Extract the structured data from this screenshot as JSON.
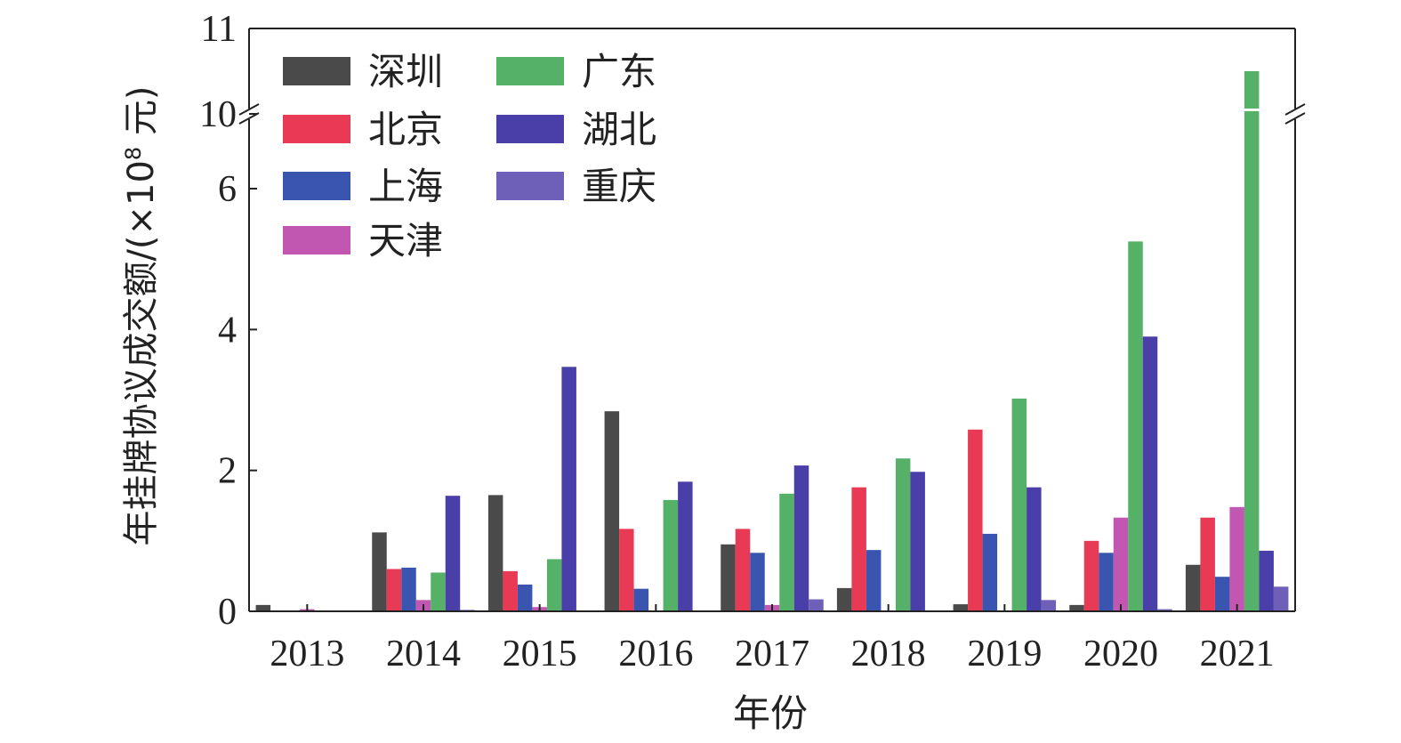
{
  "chart_data": {
    "type": "bar",
    "xlabel": "年份",
    "ylabel": "年挂牌协议成交额/(×10⁸ 元)",
    "ylabel_main": "年挂牌协议成交额/(×10",
    "ylabel_exp": "8",
    "ylabel_unit": " 元)",
    "categories": [
      "2013",
      "2014",
      "2015",
      "2016",
      "2017",
      "2018",
      "2019",
      "2020",
      "2021"
    ],
    "yticks_lower": [
      "0",
      "2",
      "4",
      "6"
    ],
    "yticks_upper": [
      "10",
      "11"
    ],
    "ylim_lower": [
      0,
      7.1
    ],
    "ylim_upper": [
      10,
      11
    ],
    "axis_break": true,
    "legend_position": "top-left",
    "grid": false,
    "series": [
      {
        "name": "深圳",
        "color": "#4a4a4a",
        "values": [
          0.09,
          1.12,
          1.65,
          2.84,
          0.95,
          0.33,
          0.1,
          0.09,
          0.66
        ]
      },
      {
        "name": "北京",
        "color": "#e83a54",
        "values": [
          0,
          0.6,
          0.57,
          1.17,
          1.17,
          1.76,
          2.58,
          1.0,
          1.33
        ]
      },
      {
        "name": "上海",
        "color": "#3a55b0",
        "values": [
          0,
          0.62,
          0.38,
          0.32,
          0.83,
          0.87,
          1.1,
          0.83,
          0.49
        ]
      },
      {
        "name": "天津",
        "color": "#c157b0",
        "values": [
          0.03,
          0.16,
          0.06,
          0,
          0.09,
          0,
          0,
          1.33,
          1.48
        ]
      },
      {
        "name": "广东",
        "color": "#55b068",
        "values": [
          0,
          0.55,
          0.74,
          1.58,
          1.67,
          2.17,
          3.02,
          5.25,
          10.5
        ]
      },
      {
        "name": "湖北",
        "color": "#4a3fa8",
        "values": [
          0,
          1.64,
          3.47,
          1.84,
          2.07,
          1.98,
          1.76,
          3.9,
          0.86
        ]
      },
      {
        "name": "重庆",
        "color": "#6e60b8",
        "values": [
          0,
          0.02,
          0,
          0,
          0.17,
          0,
          0.16,
          0.03,
          0.35
        ]
      }
    ]
  }
}
